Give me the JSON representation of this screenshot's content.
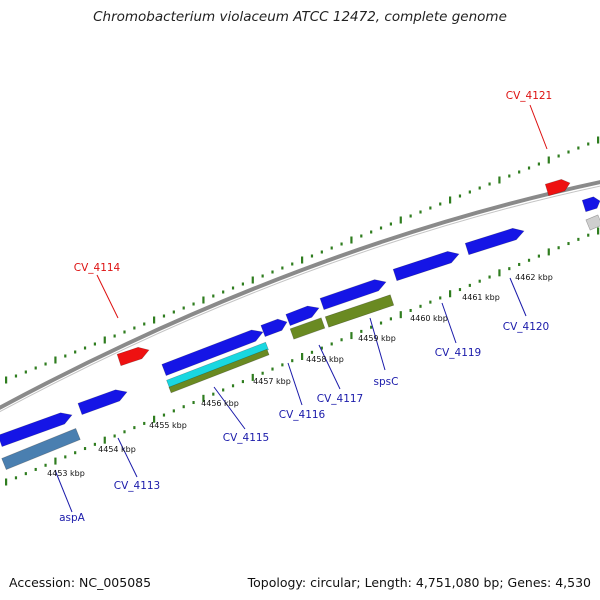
{
  "title": "Chromobacterium violaceum ATCC 12472, complete genome",
  "accession": "Accession: NC_005085",
  "stats": "Topology: circular; Length: 4,751,080 bp; Genes: 4,530",
  "colors": {
    "backbone": "#888888",
    "tick": "#2f7d1f",
    "forward_gene": "#1515e6",
    "reverse_gene": "#ee1111",
    "label_blue": "#1a1aaa",
    "label_red": "#dd1111",
    "operon_green": "#6a8a22",
    "operon_cyan": "#19d7e0",
    "operon_steel": "#4a7fb0",
    "operon_gray": "#cfcfcf"
  },
  "scale_labels": [
    "4453 kbp",
    "4454 kbp",
    "4455 kbp",
    "4456 kbp",
    "4457 kbp",
    "4458 kbp",
    "4459 kbp",
    "4460 kbp",
    "4461 kbp",
    "4462 kbp"
  ],
  "gene_labels": [
    {
      "text": "aspA",
      "strand": "forward"
    },
    {
      "text": "CV_4113",
      "strand": "forward"
    },
    {
      "text": "CV_4115",
      "strand": "forward"
    },
    {
      "text": "CV_4116",
      "strand": "forward"
    },
    {
      "text": "CV_4117",
      "strand": "forward"
    },
    {
      "text": "spsC",
      "strand": "forward"
    },
    {
      "text": "CV_4119",
      "strand": "forward"
    },
    {
      "text": "CV_4120",
      "strand": "forward"
    },
    {
      "text": "CV_4114",
      "strand": "reverse"
    },
    {
      "text": "CV_4121",
      "strand": "reverse"
    }
  ]
}
